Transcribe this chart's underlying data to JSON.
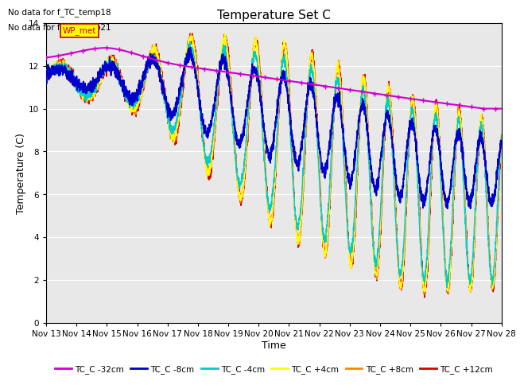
{
  "title": "Temperature Set C",
  "xlabel": "Time",
  "ylabel": "Temperature (C)",
  "ylim": [
    0,
    14
  ],
  "xlim": [
    0,
    15
  ],
  "background_color": "#ffffff",
  "plot_bg_color": "#e8e8e8",
  "annotation_lines": [
    "No data for f_TC_temp18",
    "No data for f_TC_temp21"
  ],
  "wp_met_label": "WP_met",
  "wp_met_color": "#cc0000",
  "wp_met_bg": "#ffff00",
  "legend_entries": [
    "TC_C -32cm",
    "TC_C -8cm",
    "TC_C -4cm",
    "TC_C +4cm",
    "TC_C +8cm",
    "TC_C +12cm"
  ],
  "legend_colors": [
    "#cc00cc",
    "#0000cc",
    "#00cccc",
    "#ffff00",
    "#ff8800",
    "#dd0000"
  ],
  "xtick_labels": [
    "Nov 13",
    "Nov 14",
    "Nov 15",
    "Nov 16",
    "Nov 17",
    "Nov 18",
    "Nov 19",
    "Nov 20",
    "Nov 21",
    "Nov 22",
    "Nov 23",
    "Nov 24",
    "Nov 25",
    "Nov 26",
    "Nov 27",
    "Nov 28"
  ],
  "grid_color": "#ffffff",
  "title_fontsize": 11,
  "axis_fontsize": 9,
  "tick_fontsize": 7.5
}
